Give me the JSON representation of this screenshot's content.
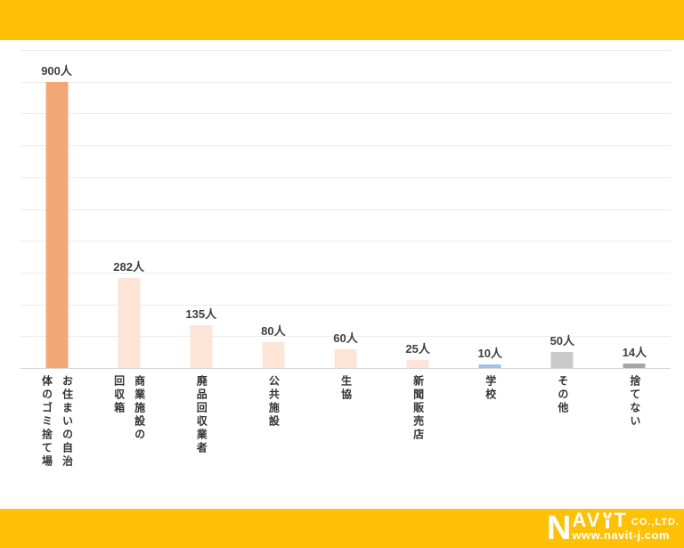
{
  "chart_data": {
    "type": "bar",
    "title": "",
    "xlabel": "",
    "ylabel": "",
    "unit": "人",
    "categories": [
      "お住まいの自治体のゴミ捨て場",
      "商業施設の回収箱",
      "廃品回収業者",
      "公共施設",
      "生協",
      "新聞販売店",
      "学校",
      "その他",
      "捨てない"
    ],
    "label_columns": [
      [
        "お住まいの自治",
        "体のゴミ捨て場"
      ],
      [
        "商業施設の",
        "回収箱"
      ],
      [
        "廃品回収業者"
      ],
      [
        "公共施設"
      ],
      [
        "生協"
      ],
      [
        "新聞販売店"
      ],
      [
        "学校"
      ],
      [
        "その他"
      ],
      [
        "捨てない"
      ]
    ],
    "values": [
      900,
      282,
      135,
      80,
      60,
      25,
      10,
      50,
      14
    ],
    "value_labels": [
      "900人",
      "282人",
      "135人",
      "80人",
      "60人",
      "25人",
      "10人",
      "50人",
      "14人"
    ],
    "bar_colors": [
      "#F2A876",
      "#FCE4D6",
      "#FCE4D6",
      "#FCE4D6",
      "#FCE4D6",
      "#FCE4D6",
      "#9DC3E6",
      "#C9C9C9",
      "#A6A6A6"
    ],
    "ylim": [
      0,
      1000
    ],
    "gridline_step": 100,
    "grid": "horizontal",
    "legend_position": "none"
  },
  "branding": {
    "logo_n": "N",
    "logo_av": "AV",
    "logo_t": "T",
    "logo_co": "CO.,LTD.",
    "logo_www": "www.navit-j.com"
  },
  "colors": {
    "band_yellow": "#FEC106",
    "gridline": "#ECECEC",
    "axis_line": "#D6D6D6",
    "value_text": "#404040",
    "category_text": "#333333",
    "logo_text": "#FFFFFF"
  }
}
